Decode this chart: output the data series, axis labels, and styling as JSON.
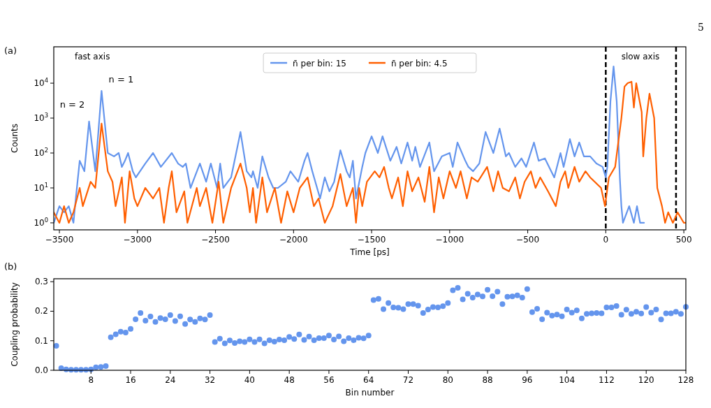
{
  "chart_data": [
    {
      "type": "line",
      "xlabel": "Time [ps]",
      "ylabel": "Counts",
      "log": "y",
      "legend": "top",
      "grid": false,
      "xlim": [
        -3536,
        513
      ],
      "xticks": [
        -3500,
        -3000,
        -2500,
        -2000,
        -1500,
        -1000,
        -500,
        0,
        500
      ],
      "ylim": [
        0.63,
        110000
      ],
      "yticks": [
        {
          "value": 1,
          "label": "10$^{0}$"
        },
        {
          "value": 10,
          "label": "10$^{1}$"
        },
        {
          "value": 100,
          "label": "10$^{2}$"
        },
        {
          "value": 1000,
          "label": "10$^{3}$"
        },
        {
          "value": 10000,
          "label": "10$^{4}$"
        }
      ],
      "annotations": [
        "5",
        "(a)",
        "fast axis",
        "slow axis",
        {
          "text": "n = 2",
          "x": -3310,
          "y": 800
        },
        {
          "text": "n = 1",
          "x": -3230,
          "y": 6000
        }
      ],
      "ref_lines": [
        {
          "axis": "x",
          "value": 0,
          "color": "#000000",
          "line_style": "dashed"
        },
        {
          "axis": "x",
          "value": 450,
          "color": "#000000",
          "line_style": "dashed"
        }
      ],
      "series": [
        {
          "name": "n̄ per bin: 15",
          "color": "#6495ed",
          "x": [
            -3536,
            -3500,
            -3470,
            -3440,
            -3410,
            -3395,
            -3370,
            -3340,
            -3310,
            -3270,
            -3230,
            -3190,
            -3150,
            -3120,
            -3100,
            -3080,
            -3060,
            -3030,
            -3010,
            -2950,
            -2900,
            -2850,
            -2780,
            -2740,
            -2710,
            -2690,
            -2660,
            -2600,
            -2560,
            -2530,
            -2490,
            -2470,
            -2450,
            -2400,
            -2340,
            -2300,
            -2270,
            -2260,
            -2230,
            -2200,
            -2160,
            -2130,
            -2100,
            -2050,
            -2020,
            -1970,
            -1930,
            -1910,
            -1880,
            -1830,
            -1800,
            -1770,
            -1740,
            -1700,
            -1660,
            -1640,
            -1620,
            -1600,
            -1560,
            -1540,
            -1500,
            -1460,
            -1430,
            -1380,
            -1340,
            -1310,
            -1270,
            -1240,
            -1220,
            -1190,
            -1130,
            -1100,
            -1050,
            -1000,
            -980,
            -950,
            -900,
            -880,
            -850,
            -810,
            -770,
            -720,
            -680,
            -640,
            -620,
            -580,
            -540,
            -510,
            -460,
            -430,
            -390,
            -330,
            -290,
            -270,
            -230,
            -200,
            -170,
            -140,
            -100,
            -60,
            -20,
            0,
            10,
            30,
            50,
            70,
            90,
            100,
            110,
            150,
            180,
            200,
            220,
            245
          ],
          "values": [
            1,
            3,
            2,
            3,
            1,
            5,
            60,
            30,
            800,
            30,
            6000,
            100,
            80,
            100,
            40,
            60,
            100,
            30,
            20,
            50,
            100,
            40,
            100,
            50,
            40,
            50,
            10,
            50,
            15,
            50,
            10,
            50,
            10,
            20,
            400,
            30,
            20,
            30,
            10,
            80,
            20,
            10,
            10,
            15,
            30,
            15,
            60,
            100,
            30,
            5,
            20,
            8,
            15,
            120,
            30,
            20,
            60,
            5,
            40,
            100,
            300,
            100,
            300,
            60,
            150,
            50,
            200,
            60,
            150,
            40,
            200,
            30,
            80,
            100,
            40,
            200,
            60,
            40,
            30,
            50,
            400,
            100,
            500,
            80,
            100,
            40,
            70,
            40,
            200,
            60,
            70,
            20,
            100,
            40,
            250,
            80,
            200,
            80,
            80,
            50,
            40,
            20,
            40,
            3000,
            30000,
            3000,
            20,
            3,
            1,
            3,
            1,
            3,
            1,
            1
          ]
        },
        {
          "name": "n̄ per bin: 4.5",
          "color": "#ff5f00",
          "x": [
            -3536,
            -3500,
            -3470,
            -3440,
            -3410,
            -3370,
            -3350,
            -3300,
            -3270,
            -3230,
            -3190,
            -3160,
            -3140,
            -3100,
            -3080,
            -3050,
            -3020,
            -3000,
            -2950,
            -2900,
            -2860,
            -2830,
            -2800,
            -2780,
            -2750,
            -2700,
            -2680,
            -2620,
            -2600,
            -2560,
            -2520,
            -2480,
            -2450,
            -2400,
            -2340,
            -2300,
            -2280,
            -2260,
            -2240,
            -2200,
            -2170,
            -2120,
            -2080,
            -2040,
            -2000,
            -1960,
            -1910,
            -1870,
            -1840,
            -1800,
            -1750,
            -1700,
            -1660,
            -1620,
            -1600,
            -1580,
            -1560,
            -1530,
            -1480,
            -1450,
            -1420,
            -1390,
            -1370,
            -1330,
            -1300,
            -1270,
            -1240,
            -1200,
            -1160,
            -1130,
            -1100,
            -1070,
            -1040,
            -1000,
            -960,
            -930,
            -890,
            -860,
            -820,
            -760,
            -720,
            -690,
            -660,
            -620,
            -580,
            -550,
            -520,
            -480,
            -450,
            -420,
            -370,
            -320,
            -290,
            -260,
            -240,
            -200,
            -170,
            -130,
            -100,
            -30,
            -5,
            20,
            60,
            80,
            100,
            120,
            140,
            165,
            180,
            195,
            230,
            240,
            260,
            280,
            310,
            330,
            360,
            380,
            400,
            430,
            460,
            500,
            513
          ],
          "values": [
            2,
            1,
            3,
            1,
            2,
            10,
            3,
            15,
            10,
            700,
            30,
            15,
            3,
            20,
            1,
            30,
            5,
            3,
            10,
            5,
            10,
            1,
            10,
            30,
            2,
            8,
            1,
            10,
            3,
            10,
            1,
            15,
            1,
            10,
            50,
            10,
            2,
            10,
            1,
            20,
            2,
            10,
            1,
            8,
            2,
            10,
            20,
            3,
            5,
            1,
            3,
            25,
            3,
            10,
            1,
            10,
            3,
            15,
            30,
            20,
            40,
            10,
            5,
            20,
            3,
            30,
            8,
            20,
            4,
            40,
            2,
            20,
            5,
            30,
            10,
            30,
            5,
            20,
            15,
            40,
            8,
            30,
            10,
            8,
            20,
            5,
            15,
            30,
            10,
            20,
            8,
            3,
            15,
            30,
            10,
            40,
            15,
            30,
            20,
            10,
            3,
            20,
            40,
            200,
            1000,
            8000,
            10000,
            11000,
            2000,
            10000,
            1500,
            80,
            1000,
            5000,
            1000,
            10,
            3,
            1,
            2,
            1,
            2,
            1,
            1
          ]
        }
      ]
    },
    {
      "type": "scatter",
      "xlabel": "Bin number",
      "ylabel": "Coupling probability",
      "marker": "circle",
      "grid": false,
      "xlim": [
        0.5,
        128
      ],
      "xticks": [
        8,
        16,
        24,
        32,
        40,
        48,
        56,
        64,
        72,
        80,
        88,
        96,
        104,
        112,
        120,
        128
      ],
      "ylim": [
        0,
        0.31
      ],
      "yticks": [
        {
          "value": 0,
          "label": "0.0"
        },
        0.1,
        0.2,
        0.3
      ],
      "annotations": [
        "(b)"
      ],
      "series": [
        {
          "color": "#6495ed",
          "x": [
            1,
            2,
            3,
            4,
            5,
            6,
            7,
            8,
            9,
            10,
            11,
            12,
            13,
            14,
            15,
            16,
            17,
            18,
            19,
            20,
            21,
            22,
            23,
            24,
            25,
            26,
            27,
            28,
            29,
            30,
            31,
            32,
            33,
            34,
            35,
            36,
            37,
            38,
            39,
            40,
            41,
            42,
            43,
            44,
            45,
            46,
            47,
            48,
            49,
            50,
            51,
            52,
            53,
            54,
            55,
            56,
            57,
            58,
            59,
            60,
            61,
            62,
            63,
            64,
            65,
            66,
            67,
            68,
            69,
            70,
            71,
            72,
            73,
            74,
            75,
            76,
            77,
            78,
            79,
            80,
            81,
            82,
            83,
            84,
            85,
            86,
            87,
            88,
            89,
            90,
            91,
            92,
            93,
            94,
            95,
            96,
            97,
            98,
            99,
            100,
            101,
            102,
            103,
            104,
            105,
            106,
            107,
            108,
            109,
            110,
            111,
            112,
            113,
            114,
            115,
            116,
            117,
            118,
            119,
            120,
            121,
            122,
            123,
            124,
            125,
            126,
            127,
            128
          ],
          "values": [
            0.083,
            0.007,
            0.003,
            0.002,
            0.002,
            0.002,
            0.002,
            0.003,
            0.01,
            0.011,
            0.014,
            0.112,
            0.122,
            0.131,
            0.128,
            0.14,
            0.173,
            0.194,
            0.168,
            0.182,
            0.164,
            0.177,
            0.173,
            0.187,
            0.167,
            0.183,
            0.157,
            0.172,
            0.164,
            0.176,
            0.172,
            0.187,
            0.096,
            0.107,
            0.091,
            0.101,
            0.092,
            0.098,
            0.096,
            0.105,
            0.096,
            0.105,
            0.091,
            0.102,
            0.097,
            0.104,
            0.102,
            0.113,
            0.106,
            0.121,
            0.103,
            0.114,
            0.102,
            0.109,
            0.109,
            0.118,
            0.104,
            0.115,
            0.098,
            0.109,
            0.102,
            0.11,
            0.108,
            0.118,
            0.238,
            0.242,
            0.207,
            0.228,
            0.213,
            0.212,
            0.207,
            0.224,
            0.224,
            0.219,
            0.194,
            0.206,
            0.214,
            0.213,
            0.217,
            0.228,
            0.271,
            0.279,
            0.24,
            0.259,
            0.246,
            0.257,
            0.25,
            0.273,
            0.251,
            0.266,
            0.224,
            0.249,
            0.25,
            0.254,
            0.246,
            0.275,
            0.197,
            0.208,
            0.173,
            0.195,
            0.185,
            0.189,
            0.183,
            0.206,
            0.195,
            0.203,
            0.176,
            0.191,
            0.193,
            0.194,
            0.193,
            0.213,
            0.213,
            0.218,
            0.188,
            0.205,
            0.191,
            0.198,
            0.192,
            0.214,
            0.195,
            0.206,
            0.172,
            0.193,
            0.193,
            0.198,
            0.191,
            0.215
          ]
        }
      ]
    }
  ]
}
